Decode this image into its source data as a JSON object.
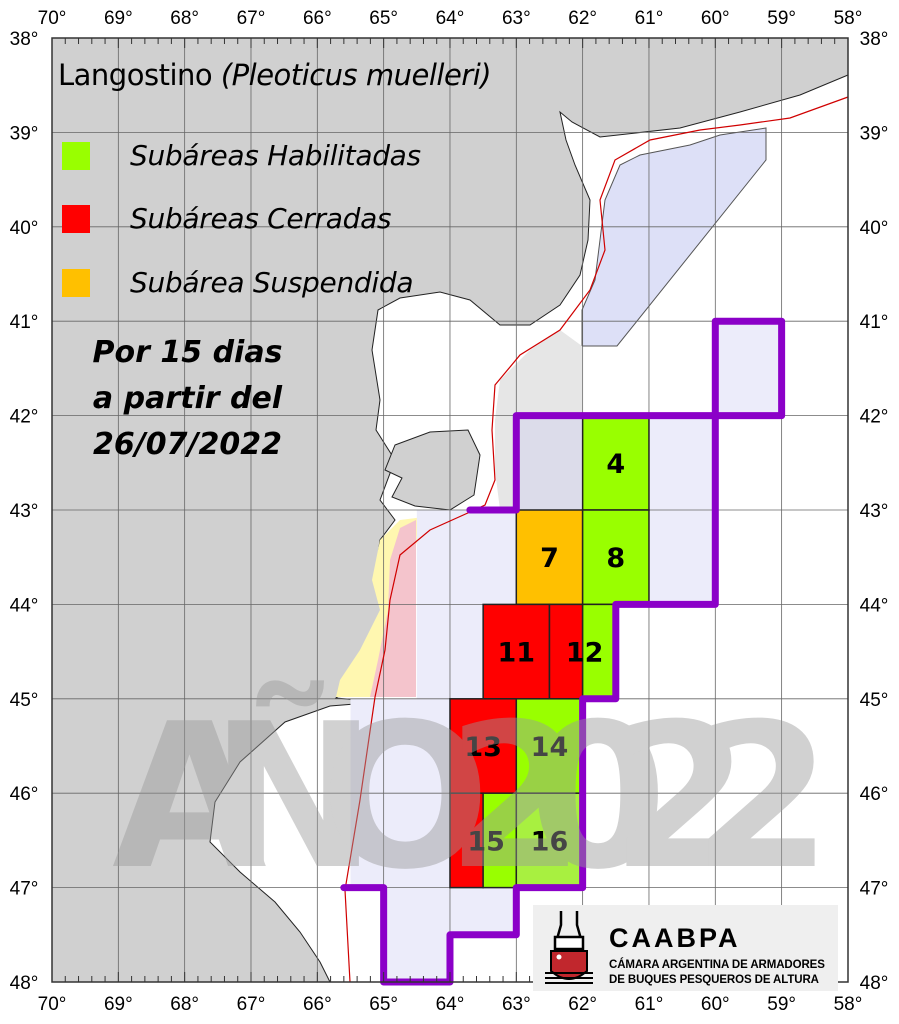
{
  "title": {
    "main": "Langostino",
    "species": "(Pleoticus muelleri)"
  },
  "legend": [
    {
      "label": "Subáreas Habilitadas",
      "color": "#99ff00"
    },
    {
      "label": "Subáreas Cerradas",
      "color": "#ff0000"
    },
    {
      "label": "Subárea Suspendida",
      "color": "#ffc000"
    }
  ],
  "note": {
    "line1": "Por 15 dias",
    "line2": "a partir del",
    "line3": "26/07/2022"
  },
  "watermark": "AÑO 2022",
  "axes": {
    "lon_labels": [
      "70°",
      "69°",
      "68°",
      "67°",
      "66°",
      "65°",
      "64°",
      "63°",
      "62°",
      "61°",
      "60°",
      "59°",
      "58°"
    ],
    "lat_labels": [
      "38°",
      "39°",
      "40°",
      "41°",
      "42°",
      "43°",
      "44°",
      "45°",
      "46°",
      "47°",
      "48°"
    ],
    "lon_range": [
      -70,
      -58
    ],
    "lat_range": [
      -38,
      -48
    ]
  },
  "colors": {
    "land": "#d0d0d0",
    "boundary": "#8b00c8",
    "shelf_line": "#d00000",
    "zone": "#eaeafa",
    "grid": "#555555"
  },
  "cells": [
    {
      "label": "4",
      "status": "habilitada",
      "color": "#99ff00",
      "lon": [
        62,
        61
      ],
      "lat": [
        42,
        43
      ]
    },
    {
      "label": "7",
      "status": "suspendida",
      "color": "#ffc000",
      "lon": [
        63,
        62
      ],
      "lat": [
        43,
        44
      ]
    },
    {
      "label": "8",
      "status": "habilitada",
      "color": "#99ff00",
      "lon": [
        62,
        61
      ],
      "lat": [
        43,
        44
      ]
    },
    {
      "label": "11",
      "status": "cerrada",
      "color": "#ff0000",
      "lon": [
        63.5,
        62.5
      ],
      "lat": [
        44,
        45
      ]
    },
    {
      "label": "",
      "status": "cerrada",
      "color": "#ff0000",
      "lon": [
        62.5,
        62
      ],
      "lat": [
        44,
        45
      ]
    },
    {
      "label": "12",
      "status": "habilitada",
      "color": "#99ff00",
      "lon": [
        62,
        61.5
      ],
      "lat": [
        44,
        45
      ]
    },
    {
      "label": "13",
      "status": "cerrada",
      "color": "#ff0000",
      "lon": [
        64,
        63
      ],
      "lat": [
        45,
        46
      ]
    },
    {
      "label": "14",
      "status": "habilitada",
      "color": "#99ff00",
      "lon": [
        63,
        62
      ],
      "lat": [
        45,
        46
      ]
    },
    {
      "label": "",
      "status": "cerrada",
      "color": "#ff0000",
      "lon": [
        64,
        63.5
      ],
      "lat": [
        46,
        47
      ]
    },
    {
      "label": "15",
      "status": "habilitada",
      "color": "#99ff00",
      "lon": [
        63.5,
        63
      ],
      "lat": [
        46,
        47
      ]
    },
    {
      "label": "16",
      "status": "habilitada",
      "color": "#a8f040",
      "lon": [
        63,
        62
      ],
      "lat": [
        46,
        47
      ]
    }
  ],
  "boundary": [
    [
      63.7,
      43
    ],
    [
      63,
      43
    ],
    [
      63,
      42
    ],
    [
      60,
      42
    ],
    [
      60,
      41
    ],
    [
      59,
      41
    ],
    [
      59,
      42
    ],
    [
      60,
      42
    ],
    [
      60,
      44
    ],
    [
      61.5,
      44
    ],
    [
      61.5,
      45
    ],
    [
      62,
      45
    ],
    [
      62,
      47
    ],
    [
      63,
      47
    ],
    [
      63,
      47.5
    ],
    [
      64,
      47.5
    ],
    [
      64,
      48
    ],
    [
      65,
      48
    ],
    [
      65,
      47
    ],
    [
      65.6,
      47
    ]
  ],
  "logo": {
    "name": "CAABPA",
    "line1": "CÁMARA ARGENTINA DE ARMADORES",
    "line2": "DE BUQUES PESQUEROS DE ALTURA"
  }
}
